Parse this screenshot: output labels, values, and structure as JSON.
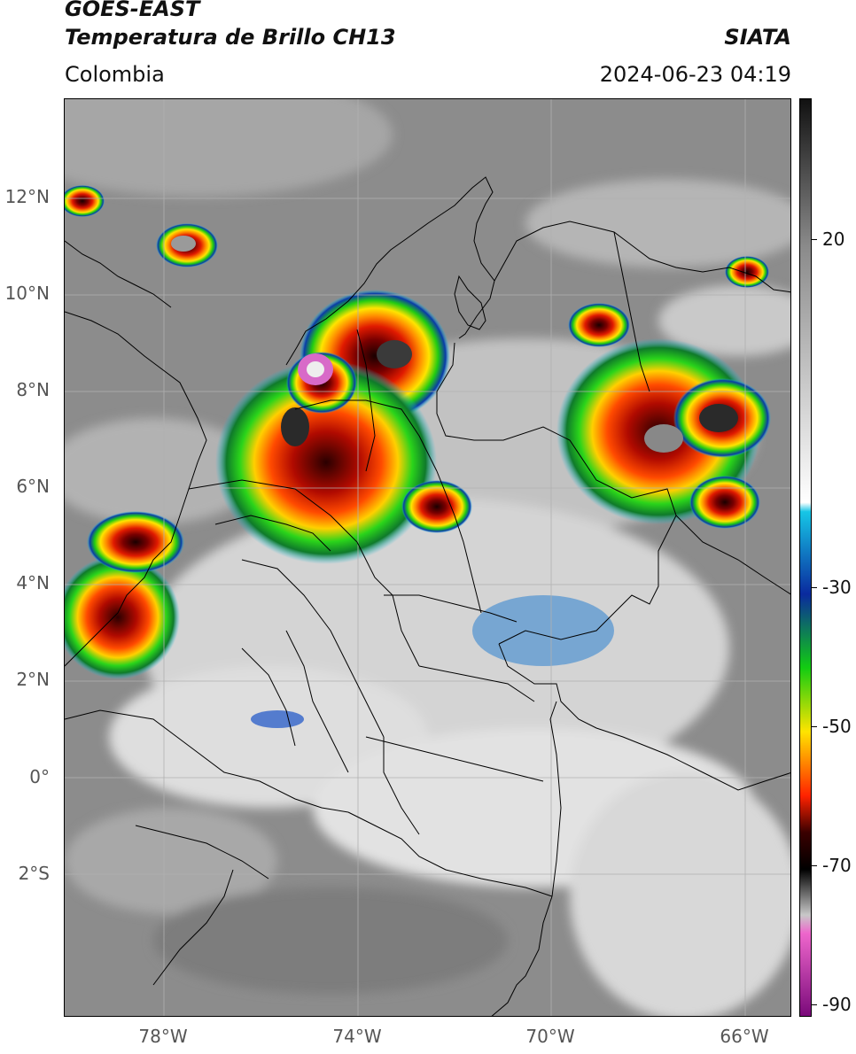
{
  "header": {
    "satellite": "GOES-EAST",
    "product": "Temperatura de Brillo CH13",
    "brand": "SIATA",
    "region": "Colombia",
    "timestamp": "2024-06-23 04:19"
  },
  "map": {
    "lat_labels": [
      "12°N",
      "10°N",
      "8°N",
      "6°N",
      "4°N",
      "2°N",
      "0°",
      "2°S"
    ],
    "lon_labels": [
      "78°W",
      "74°W",
      "70°W",
      "66°W"
    ]
  },
  "colorbar": {
    "tick_labels": [
      "20",
      "-30",
      "-50",
      "-70",
      "-90"
    ],
    "colors": [
      "#111111",
      "#8a8a8a",
      "#ffffff",
      "#16c6e6",
      "#0a2a9e",
      "#12cc12",
      "#ffe400",
      "#ff2200",
      "#3a0000",
      "#000000",
      "#c8c8c8",
      "#ee66cc",
      "#7a0a7a"
    ]
  }
}
